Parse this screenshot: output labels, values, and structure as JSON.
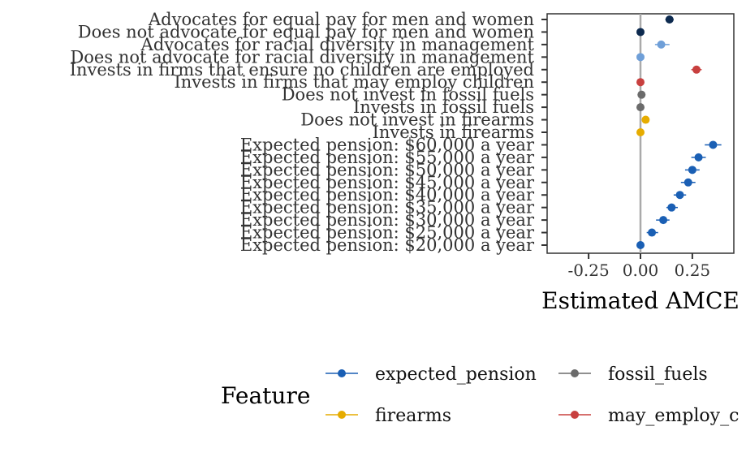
{
  "chart_data": {
    "type": "scatter",
    "xlabel": "Estimated AMCE",
    "ylabel": "",
    "xlim": [
      -0.45,
      0.45
    ],
    "x_ticks": [
      -0.25,
      0.0,
      0.25
    ],
    "x_tick_labels": [
      "-0.25",
      "0.00",
      "0.25"
    ],
    "reference_line": 0,
    "grid": false,
    "legend": {
      "title": "Feature",
      "placement": "bottom",
      "entries": [
        {
          "label": "expected_pension",
          "color": "#1a5fb4"
        },
        {
          "label": "fossil_fuels",
          "color": "#6b6b6b"
        },
        {
          "label": "firearms",
          "color": "#e6ac00"
        },
        {
          "label": "may_employ_c",
          "color": "#c8403f"
        }
      ]
    },
    "categories": [
      "Advocates for equal pay for men and women",
      "Does not advocate for equal pay for men and women",
      "Advocates for racial diversity in management",
      "Does not advocate for racial diversity in management",
      "Invests in firms that ensure no children are employed",
      "Invests in firms that may employ children",
      "Does not invest in fossil fuels",
      "Invests in fossil fuels",
      "Does not invest in firearms",
      "Invests in firearms",
      "Expected pension: $60,000 a year",
      "Expected pension: $55,000 a year",
      "Expected pension: $50,000 a year",
      "Expected pension: $45,000 a year",
      "Expected pension: $40,000 a year",
      "Expected pension: $35,000 a year",
      "Expected pension: $30,000 a year",
      "Expected pension: $25,000 a year",
      "Expected pension: $20,000 a year"
    ],
    "points": [
      {
        "label": "Advocates for equal pay for men and women",
        "estimate": 0.14,
        "lower": 0.12,
        "upper": 0.16,
        "color": "#0d2a4f"
      },
      {
        "label": "Does not advocate for equal pay for men and women",
        "estimate": 0.0,
        "lower": 0.0,
        "upper": 0.0,
        "color": "#0d2a4f"
      },
      {
        "label": "Advocates for racial diversity in management",
        "estimate": 0.1,
        "lower": 0.07,
        "upper": 0.14,
        "color": "#6f9fd8"
      },
      {
        "label": "Does not advocate for racial diversity in management",
        "estimate": 0.0,
        "lower": 0.0,
        "upper": 0.0,
        "color": "#6f9fd8"
      },
      {
        "label": "Invests in firms that ensure no children are employed",
        "estimate": 0.27,
        "lower": 0.245,
        "upper": 0.295,
        "color": "#c8403f"
      },
      {
        "label": "Invests in firms that may employ children",
        "estimate": 0.0,
        "lower": 0.0,
        "upper": 0.0,
        "color": "#c8403f"
      },
      {
        "label": "Does not invest in fossil fuels",
        "estimate": 0.005,
        "lower": -0.005,
        "upper": 0.015,
        "color": "#6b6b6b"
      },
      {
        "label": "Invests in fossil fuels",
        "estimate": 0.0,
        "lower": 0.0,
        "upper": 0.0,
        "color": "#6b6b6b"
      },
      {
        "label": "Does not invest in firearms",
        "estimate": 0.025,
        "lower": 0.01,
        "upper": 0.04,
        "color": "#e6ac00"
      },
      {
        "label": "Invests in firearms",
        "estimate": 0.0,
        "lower": 0.0,
        "upper": 0.0,
        "color": "#e6ac00"
      },
      {
        "label": "Expected pension: $60,000 a year",
        "estimate": 0.35,
        "lower": 0.31,
        "upper": 0.39,
        "color": "#1a5fb4"
      },
      {
        "label": "Expected pension: $55,000 a year",
        "estimate": 0.28,
        "lower": 0.245,
        "upper": 0.315,
        "color": "#1a5fb4"
      },
      {
        "label": "Expected pension: $50,000 a year",
        "estimate": 0.25,
        "lower": 0.215,
        "upper": 0.285,
        "color": "#1a5fb4"
      },
      {
        "label": "Expected pension: $45,000 a year",
        "estimate": 0.23,
        "lower": 0.195,
        "upper": 0.265,
        "color": "#1a5fb4"
      },
      {
        "label": "Expected pension: $40,000 a year",
        "estimate": 0.19,
        "lower": 0.16,
        "upper": 0.22,
        "color": "#1a5fb4"
      },
      {
        "label": "Expected pension: $35,000 a year",
        "estimate": 0.15,
        "lower": 0.125,
        "upper": 0.18,
        "color": "#1a5fb4"
      },
      {
        "label": "Expected pension: $30,000 a year",
        "estimate": 0.11,
        "lower": 0.075,
        "upper": 0.14,
        "color": "#1a5fb4"
      },
      {
        "label": "Expected pension: $25,000 a year",
        "estimate": 0.055,
        "lower": 0.03,
        "upper": 0.085,
        "color": "#1a5fb4"
      },
      {
        "label": "Expected pension: $20,000 a year",
        "estimate": 0.0,
        "lower": 0.0,
        "upper": 0.0,
        "color": "#1a5fb4"
      }
    ]
  }
}
